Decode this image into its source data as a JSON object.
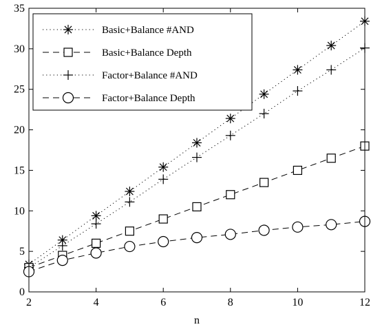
{
  "chart_data": {
    "type": "line",
    "title": "",
    "xlabel": "n",
    "ylabel": "",
    "xlim": [
      2,
      12
    ],
    "ylim": [
      0,
      35
    ],
    "x_ticks": [
      2,
      4,
      6,
      8,
      10,
      12
    ],
    "y_ticks": [
      0,
      5,
      10,
      15,
      20,
      25,
      30,
      35
    ],
    "grid": false,
    "legend_position": "top-left",
    "x": [
      2,
      3,
      4,
      5,
      6,
      7,
      8,
      9,
      10,
      11,
      12
    ],
    "series": [
      {
        "name": "Basic+Balance #AND",
        "line_style": "dotted",
        "marker": "asterisk",
        "color": "#000000",
        "values": [
          3.4,
          6.4,
          9.4,
          12.4,
          15.4,
          18.4,
          21.4,
          24.4,
          27.4,
          30.4,
          33.4
        ]
      },
      {
        "name": "Basic+Balance Depth",
        "line_style": "dashed",
        "marker": "square",
        "color": "#000000",
        "values": [
          3.0,
          4.5,
          6.0,
          7.5,
          9.0,
          10.5,
          12.0,
          13.5,
          15.0,
          16.5,
          18.0
        ]
      },
      {
        "name": "Factor+Balance #AND",
        "line_style": "dotted",
        "marker": "plus",
        "color": "#000000",
        "values": [
          3.0,
          5.7,
          8.4,
          11.1,
          13.9,
          16.6,
          19.3,
          22.0,
          24.8,
          27.4,
          30.1
        ]
      },
      {
        "name": "Factor+Balance Depth",
        "line_style": "dashed",
        "marker": "circle",
        "color": "#000000",
        "values": [
          2.5,
          3.9,
          4.8,
          5.6,
          6.2,
          6.7,
          7.1,
          7.6,
          8.0,
          8.3,
          8.7
        ]
      }
    ]
  }
}
